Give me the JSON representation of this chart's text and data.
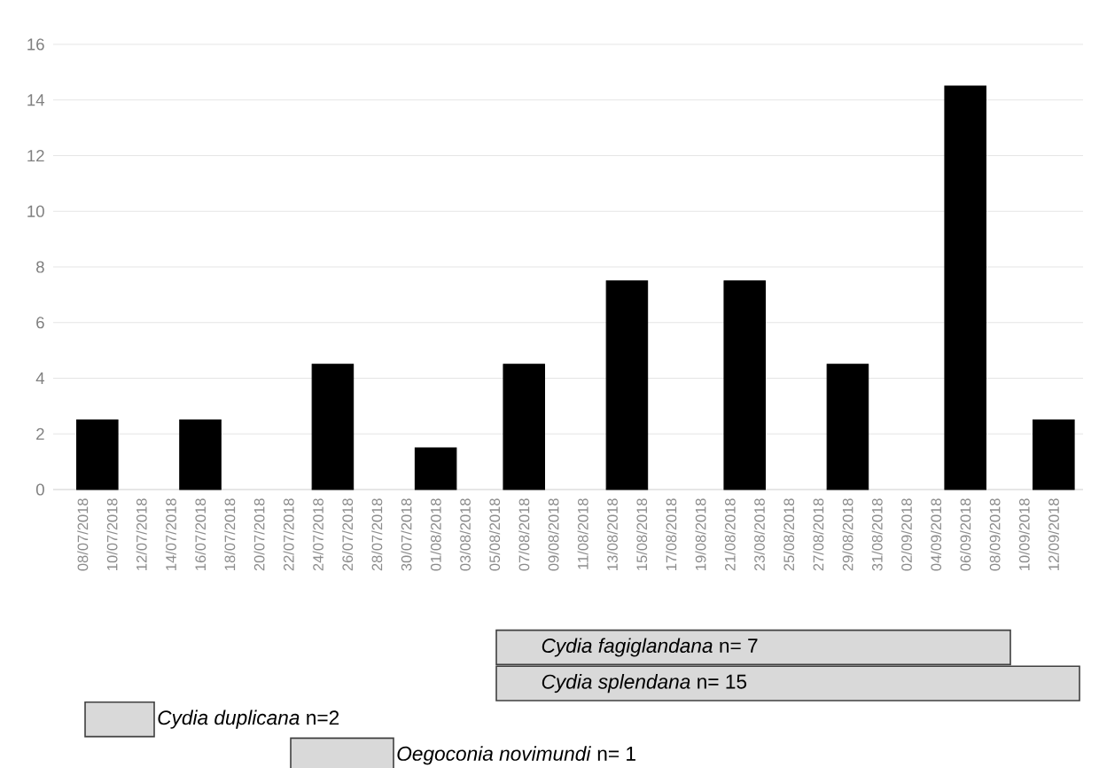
{
  "chart_data": [
    {
      "type": "bar",
      "x": [
        "2018-07-09",
        "2018-07-16",
        "2018-07-25",
        "2018-08-01",
        "2018-08-07",
        "2018-08-14",
        "2018-08-22",
        "2018-08-29",
        "2018-09-06",
        "2018-09-12"
      ],
      "values": [
        2.5,
        2.5,
        4.5,
        1.5,
        4.5,
        7.5,
        7.5,
        4.5,
        14.5,
        2.5
      ],
      "color": "#000000",
      "xlim": [
        "2018-07-06",
        "2018-09-14"
      ],
      "xticks": [
        {
          "value": "2018-07-08",
          "label": "08/07/2018"
        },
        {
          "value": "2018-07-10",
          "label": "10/07/2018"
        },
        {
          "value": "2018-07-12",
          "label": "12/07/2018"
        },
        {
          "value": "2018-07-14",
          "label": "14/07/2018"
        },
        {
          "value": "2018-07-16",
          "label": "16/07/2018"
        },
        {
          "value": "2018-07-18",
          "label": "18/07/2018"
        },
        {
          "value": "2018-07-20",
          "label": "20/07/2018"
        },
        {
          "value": "2018-07-22",
          "label": "22/07/2018"
        },
        {
          "value": "2018-07-24",
          "label": "24/07/2018"
        },
        {
          "value": "2018-07-26",
          "label": "26/07/2018"
        },
        {
          "value": "2018-07-28",
          "label": "28/07/2018"
        },
        {
          "value": "2018-07-30",
          "label": "30/07/2018"
        },
        {
          "value": "2018-08-01",
          "label": "01/08/2018"
        },
        {
          "value": "2018-08-03",
          "label": "03/08/2018"
        },
        {
          "value": "2018-08-05",
          "label": "05/08/2018"
        },
        {
          "value": "2018-08-07",
          "label": "07/08/2018"
        },
        {
          "value": "2018-08-09",
          "label": "09/08/2018"
        },
        {
          "value": "2018-08-11",
          "label": "11/08/2018"
        },
        {
          "value": "2018-08-13",
          "label": "13/08/2018"
        },
        {
          "value": "2018-08-15",
          "label": "15/08/2018"
        },
        {
          "value": "2018-08-17",
          "label": "17/08/2018"
        },
        {
          "value": "2018-08-19",
          "label": "19/08/2018"
        },
        {
          "value": "2018-08-21",
          "label": "21/08/2018"
        },
        {
          "value": "2018-08-23",
          "label": "23/08/2018"
        },
        {
          "value": "2018-08-25",
          "label": "25/08/2018"
        },
        {
          "value": "2018-08-27",
          "label": "27/08/2018"
        },
        {
          "value": "2018-08-29",
          "label": "29/08/2018"
        },
        {
          "value": "2018-08-31",
          "label": "31/08/2018"
        },
        {
          "value": "2018-09-02",
          "label": "02/09/2018"
        },
        {
          "value": "2018-09-04",
          "label": "04/09/2018"
        },
        {
          "value": "2018-09-06",
          "label": "06/09/2018"
        },
        {
          "value": "2018-09-08",
          "label": "08/09/2018"
        },
        {
          "value": "2018-09-10",
          "label": "10/09/2018"
        },
        {
          "value": "2018-09-12",
          "label": "12/09/2018"
        }
      ],
      "ylim": [
        0,
        16
      ],
      "yticks": [
        0,
        2,
        4,
        6,
        8,
        10,
        12,
        14,
        16
      ],
      "grid": "y"
    },
    {
      "type": "other",
      "annotations": [
        "*Cydia fagiglandana* n= 7",
        "*Cydia splendana* n= 15",
        "*Cydia duplicana* n=2",
        "*Oegoconia novimundi* n= 1"
      ]
    }
  ]
}
